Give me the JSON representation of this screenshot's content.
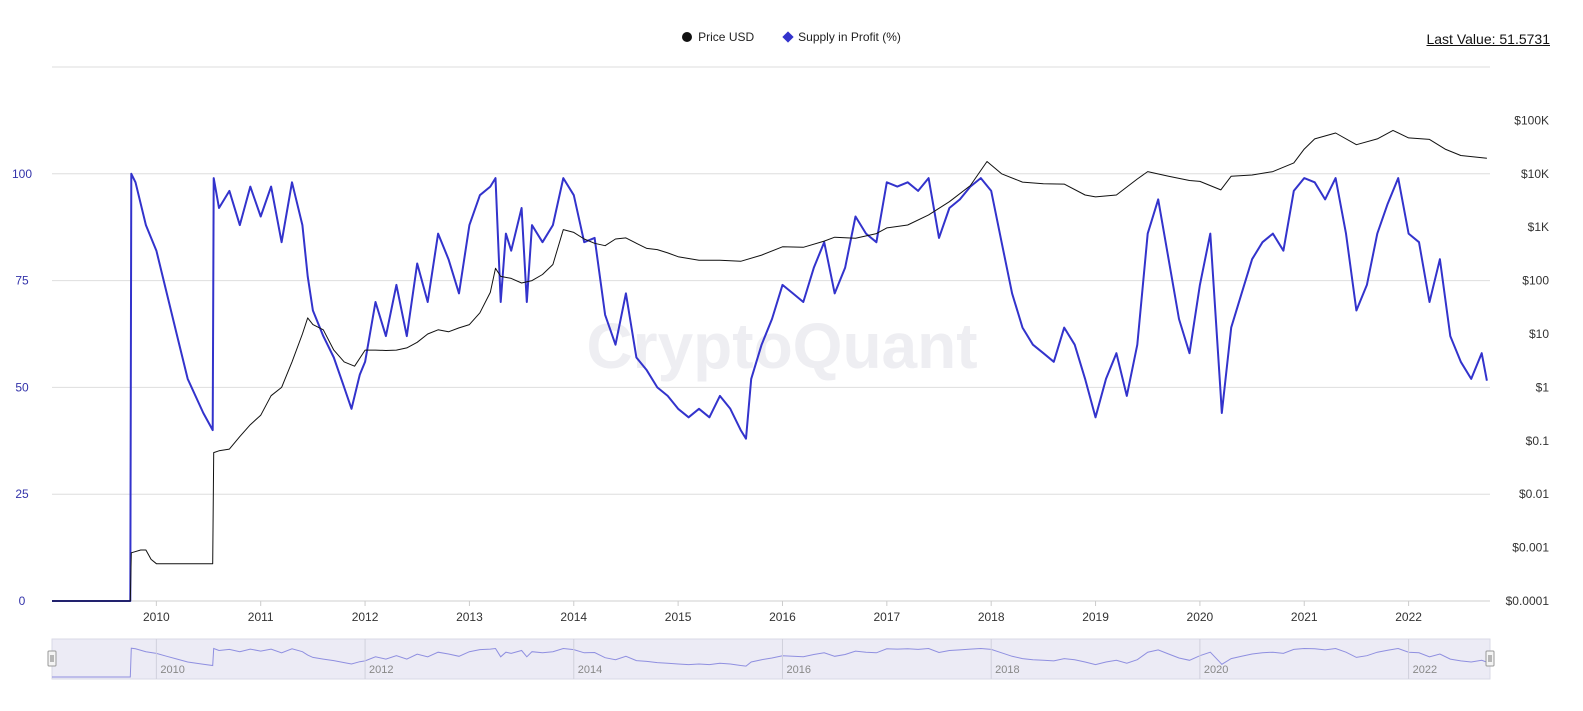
{
  "legend": {
    "price_label": "Price USD",
    "supply_label": "Supply in Profit (%)"
  },
  "last_value": "Last Value: 51.5731",
  "colors": {
    "price": "#111111",
    "supply": "#3333cc",
    "grid": "#dedede",
    "left_axis_text": "#3333aa",
    "right_axis_text": "#333333",
    "navigator_fill": "#ecebf5",
    "navigator_line": "#8f8fe0"
  },
  "watermark": "CryptoQuant",
  "chart_data": {
    "type": "line",
    "title": "",
    "grid": true,
    "legend_position": "top-center",
    "x_ticks": [
      "2010",
      "2011",
      "2012",
      "2013",
      "2014",
      "2015",
      "2016",
      "2017",
      "2018",
      "2019",
      "2020",
      "2021",
      "2022"
    ],
    "navigator_ticks": [
      "2010",
      "2012",
      "2014",
      "2016",
      "2018",
      "2020",
      "2022"
    ],
    "y_left": {
      "label": "",
      "range": [
        0,
        125
      ],
      "ticks": [
        "0",
        "25",
        "50",
        "75",
        "100"
      ]
    },
    "y_right": {
      "label": "",
      "scale": "log",
      "range": [
        0.0001,
        1000000
      ],
      "ticks": [
        "$0.0001",
        "$0.001",
        "$0.01",
        "$0.1",
        "$1",
        "$10",
        "$100",
        "$1K",
        "$10K",
        "$100K"
      ]
    },
    "series": [
      {
        "name": "Supply in Profit (%)",
        "axis": "left",
        "x": [
          2009.0,
          2009.75,
          2009.76,
          2009.8,
          2009.9,
          2010.0,
          2010.1,
          2010.2,
          2010.3,
          2010.45,
          2010.54,
          2010.55,
          2010.6,
          2010.7,
          2010.8,
          2010.9,
          2011.0,
          2011.1,
          2011.2,
          2011.3,
          2011.4,
          2011.45,
          2011.5,
          2011.6,
          2011.7,
          2011.8,
          2011.87,
          2011.95,
          2012.0,
          2012.1,
          2012.2,
          2012.3,
          2012.4,
          2012.5,
          2012.6,
          2012.7,
          2012.8,
          2012.9,
          2013.0,
          2013.1,
          2013.2,
          2013.25,
          2013.3,
          2013.35,
          2013.4,
          2013.5,
          2013.55,
          2013.6,
          2013.7,
          2013.8,
          2013.9,
          2014.0,
          2014.1,
          2014.2,
          2014.3,
          2014.4,
          2014.5,
          2014.6,
          2014.7,
          2014.8,
          2014.9,
          2015.0,
          2015.1,
          2015.2,
          2015.3,
          2015.4,
          2015.5,
          2015.6,
          2015.65,
          2015.7,
          2015.8,
          2015.9,
          2016.0,
          2016.1,
          2016.2,
          2016.3,
          2016.4,
          2016.5,
          2016.6,
          2016.7,
          2016.8,
          2016.9,
          2017.0,
          2017.1,
          2017.2,
          2017.3,
          2017.4,
          2017.5,
          2017.6,
          2017.7,
          2017.8,
          2017.9,
          2018.0,
          2018.1,
          2018.2,
          2018.3,
          2018.4,
          2018.5,
          2018.6,
          2018.7,
          2018.8,
          2018.9,
          2019.0,
          2019.1,
          2019.2,
          2019.3,
          2019.4,
          2019.5,
          2019.6,
          2019.7,
          2019.8,
          2019.9,
          2020.0,
          2020.1,
          2020.2,
          2020.21,
          2020.3,
          2020.4,
          2020.5,
          2020.6,
          2020.7,
          2020.8,
          2020.9,
          2021.0,
          2021.1,
          2021.2,
          2021.3,
          2021.4,
          2021.5,
          2021.6,
          2021.7,
          2021.8,
          2021.9,
          2022.0,
          2022.1,
          2022.2,
          2022.3,
          2022.4,
          2022.5,
          2022.6,
          2022.7,
          2022.75
        ],
        "values": [
          0,
          0,
          100,
          98,
          88,
          82,
          72,
          62,
          52,
          44,
          40,
          99,
          92,
          96,
          88,
          97,
          90,
          97,
          84,
          98,
          88,
          76,
          68,
          62,
          57,
          50,
          45,
          53,
          56,
          70,
          62,
          74,
          62,
          79,
          70,
          86,
          80,
          72,
          88,
          95,
          97,
          99,
          70,
          86,
          82,
          92,
          70,
          88,
          84,
          88,
          99,
          95,
          84,
          85,
          67,
          60,
          72,
          57,
          54,
          50,
          48,
          45,
          43,
          45,
          43,
          48,
          45,
          40,
          38,
          52,
          60,
          66,
          74,
          72,
          70,
          78,
          84,
          72,
          78,
          90,
          86,
          84,
          98,
          97,
          98,
          96,
          99,
          85,
          92,
          94,
          97,
          99,
          96,
          84,
          72,
          64,
          60,
          58,
          56,
          64,
          60,
          52,
          43,
          52,
          58,
          48,
          60,
          86,
          94,
          80,
          66,
          58,
          74,
          86,
          48,
          44,
          64,
          72,
          80,
          84,
          86,
          82,
          96,
          99,
          98,
          94,
          99,
          86,
          68,
          74,
          86,
          93,
          99,
          86,
          84,
          70,
          80,
          62,
          56,
          52,
          58,
          51.5731
        ]
      },
      {
        "name": "Price USD",
        "axis": "right",
        "x": [
          2009.0,
          2009.75,
          2009.76,
          2009.85,
          2009.9,
          2009.95,
          2010.0,
          2010.3,
          2010.54,
          2010.55,
          2010.6,
          2010.7,
          2010.8,
          2010.9,
          2011.0,
          2011.1,
          2011.2,
          2011.3,
          2011.4,
          2011.45,
          2011.5,
          2011.6,
          2011.7,
          2011.8,
          2011.9,
          2012.0,
          2012.1,
          2012.2,
          2012.3,
          2012.4,
          2012.5,
          2012.6,
          2012.7,
          2012.8,
          2012.9,
          2013.0,
          2013.1,
          2013.2,
          2013.25,
          2013.3,
          2013.4,
          2013.5,
          2013.6,
          2013.7,
          2013.8,
          2013.9,
          2014.0,
          2014.1,
          2014.2,
          2014.3,
          2014.4,
          2014.5,
          2014.6,
          2014.7,
          2014.8,
          2014.9,
          2015.0,
          2015.2,
          2015.4,
          2015.6,
          2015.8,
          2016.0,
          2016.2,
          2016.4,
          2016.5,
          2016.7,
          2016.9,
          2017.0,
          2017.2,
          2017.4,
          2017.6,
          2017.8,
          2017.96,
          2018.1,
          2018.3,
          2018.5,
          2018.7,
          2018.9,
          2019.0,
          2019.2,
          2019.4,
          2019.5,
          2019.7,
          2019.9,
          2020.0,
          2020.2,
          2020.3,
          2020.5,
          2020.7,
          2020.9,
          2021.0,
          2021.1,
          2021.3,
          2021.5,
          2021.7,
          2021.85,
          2022.0,
          2022.2,
          2022.35,
          2022.5,
          2022.75
        ],
        "values": [
          0.0001,
          0.0001,
          0.0008,
          0.0009,
          0.0009,
          0.0006,
          0.0005,
          0.0005,
          0.0005,
          0.06,
          0.065,
          0.07,
          0.12,
          0.2,
          0.3,
          0.7,
          1.0,
          3.0,
          10,
          20,
          15,
          12,
          5,
          3,
          2.5,
          5,
          5,
          4.9,
          5,
          5.5,
          7,
          10,
          12,
          11,
          13,
          15,
          25,
          60,
          170,
          120,
          110,
          90,
          100,
          130,
          200,
          900,
          800,
          600,
          500,
          450,
          600,
          630,
          500,
          400,
          380,
          330,
          280,
          240,
          240,
          230,
          300,
          430,
          420,
          550,
          650,
          620,
          760,
          970,
          1100,
          1700,
          3000,
          6000,
          17000,
          10000,
          7000,
          6500,
          6400,
          4000,
          3700,
          4000,
          8000,
          11000,
          9000,
          7500,
          7200,
          5000,
          9000,
          9500,
          11000,
          16000,
          29000,
          45000,
          58000,
          35000,
          45000,
          65000,
          47000,
          44000,
          29000,
          22000,
          19500
        ]
      }
    ]
  }
}
